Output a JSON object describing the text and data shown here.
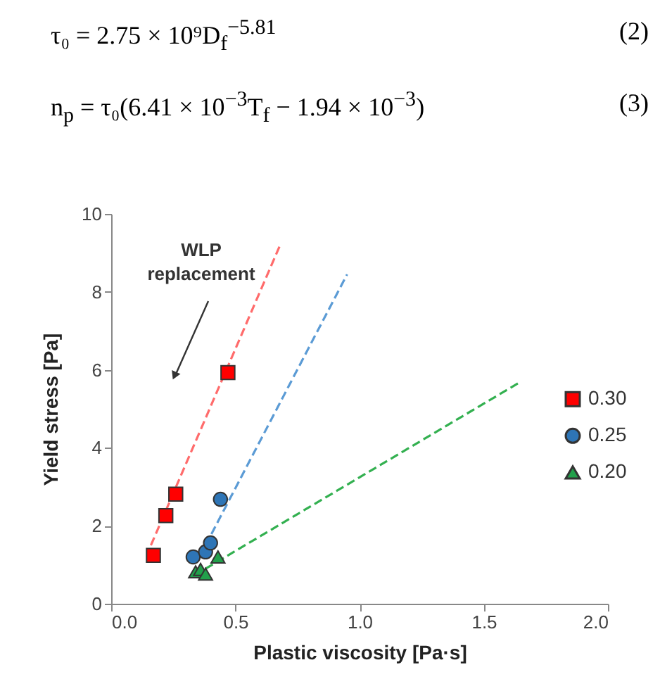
{
  "chart_data": {
    "type": "scatter",
    "annotations": [
      "τ₀ = 2.75 × 10⁹D$_{f}$$^{−5.81}$",
      "(2)",
      "n$_{p}$ = τ₀(6.41 × 10$^{−3}$T$_{f}$ − 1.94 × 10$^{−3}$)",
      "(3)",
      "WLP replacement"
    ],
    "xlabel": "Plastic viscosity [Pa·s]",
    "ylabel": "Yield stress [Pa]",
    "xlim": [
      0,
      2
    ],
    "xticks": [
      {
        "value": 0,
        "label": "0.0"
      },
      {
        "value": 0.5,
        "label": "0.5"
      },
      {
        "value": 1,
        "label": "1.0"
      },
      {
        "value": 1.5,
        "label": "1.5"
      },
      {
        "value": 2,
        "label": "2.0"
      }
    ],
    "ylim": [
      0,
      10
    ],
    "yticks": [
      0,
      2,
      4,
      6,
      8,
      10
    ],
    "legend": "right",
    "series": [
      {
        "name": "0.30",
        "marker": "square",
        "color": "#ff0000",
        "x": [
          0.17,
          0.22,
          0.26,
          0.47
        ],
        "values": [
          1.24,
          2.26,
          2.81,
          5.93
        ]
      },
      {
        "name": "0.25",
        "marker": "circle",
        "color": "#2e75b6",
        "x": [
          0.33,
          0.38,
          0.4,
          0.44
        ],
        "values": [
          1.2,
          1.33,
          1.56,
          2.68
        ]
      },
      {
        "name": "0.20",
        "marker": "triangle",
        "color": "#22a04b",
        "x": [
          0.34,
          0.36,
          0.38,
          0.43
        ],
        "values": [
          0.82,
          0.88,
          0.76,
          1.2
        ]
      },
      {
        "type": "line",
        "line_style": "dashed",
        "color": "#ff6b6b",
        "x": [
          0.16,
          0.68
        ],
        "values": [
          1.5,
          9.2
        ]
      },
      {
        "type": "line",
        "line_style": "dashed",
        "color": "#5b9bd5",
        "x": [
          0.38,
          0.95
        ],
        "values": [
          1.5,
          8.45
        ]
      },
      {
        "type": "line",
        "line_style": "dashed",
        "color": "#33b050",
        "x": [
          0.38,
          1.65
        ],
        "values": [
          0.9,
          5.7
        ]
      }
    ]
  }
}
